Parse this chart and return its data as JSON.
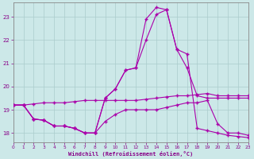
{
  "xlabel": "Windchill (Refroidissement éolien,°C)",
  "background_color": "#cce8e8",
  "grid_color": "#aacccc",
  "line_color": "#aa00aa",
  "xmin": 0,
  "xmax": 23,
  "ymin": 17.6,
  "ymax": 23.6,
  "yticks": [
    18,
    19,
    20,
    21,
    22,
    23
  ],
  "xticks": [
    0,
    1,
    2,
    3,
    4,
    5,
    6,
    7,
    8,
    9,
    10,
    11,
    12,
    13,
    14,
    15,
    16,
    17,
    18,
    19,
    20,
    21,
    22,
    23
  ],
  "lines": [
    {
      "x": [
        0,
        1,
        2,
        3,
        4,
        5,
        6,
        7,
        8,
        9,
        10,
        11,
        12,
        13,
        14,
        15,
        16,
        17,
        18,
        19,
        20,
        21,
        22,
        23
      ],
      "y": [
        19.2,
        19.2,
        19.25,
        19.3,
        19.3,
        19.3,
        19.35,
        19.4,
        19.4,
        19.4,
        19.4,
        19.4,
        19.4,
        19.45,
        19.5,
        19.55,
        19.6,
        19.6,
        19.65,
        19.7,
        19.6,
        19.6,
        19.6,
        19.6
      ]
    },
    {
      "x": [
        0,
        1,
        2,
        3,
        4,
        5,
        6,
        7,
        8,
        9,
        10,
        11,
        12,
        13,
        14,
        15,
        16,
        17,
        18,
        19,
        20,
        21,
        22,
        23
      ],
      "y": [
        19.2,
        19.2,
        18.6,
        18.55,
        18.3,
        18.3,
        18.2,
        18.0,
        18.0,
        18.5,
        18.8,
        19.0,
        19.0,
        19.0,
        19.0,
        19.1,
        19.2,
        19.3,
        19.3,
        19.4,
        18.4,
        18.0,
        18.0,
        17.9
      ]
    },
    {
      "x": [
        0,
        1,
        2,
        3,
        4,
        5,
        6,
        7,
        8,
        9,
        10,
        11,
        12,
        13,
        14,
        15,
        16,
        17,
        18,
        19,
        20,
        21,
        22,
        23
      ],
      "y": [
        19.2,
        19.2,
        18.6,
        18.55,
        18.3,
        18.3,
        18.2,
        18.0,
        18.0,
        19.5,
        19.9,
        20.7,
        20.8,
        22.0,
        23.1,
        23.3,
        21.6,
        20.8,
        19.6,
        19.5,
        19.5,
        19.5,
        19.5,
        19.5
      ]
    },
    {
      "x": [
        0,
        1,
        2,
        3,
        4,
        5,
        6,
        7,
        8,
        9,
        10,
        11,
        12,
        13,
        14,
        15,
        16,
        17,
        18,
        19,
        20,
        21,
        22,
        23
      ],
      "y": [
        19.2,
        19.2,
        18.6,
        18.55,
        18.3,
        18.3,
        18.2,
        18.0,
        18.0,
        19.5,
        19.9,
        20.7,
        20.8,
        22.9,
        23.4,
        23.3,
        21.6,
        21.4,
        18.2,
        18.1,
        18.0,
        17.9,
        17.85,
        17.8
      ]
    }
  ]
}
